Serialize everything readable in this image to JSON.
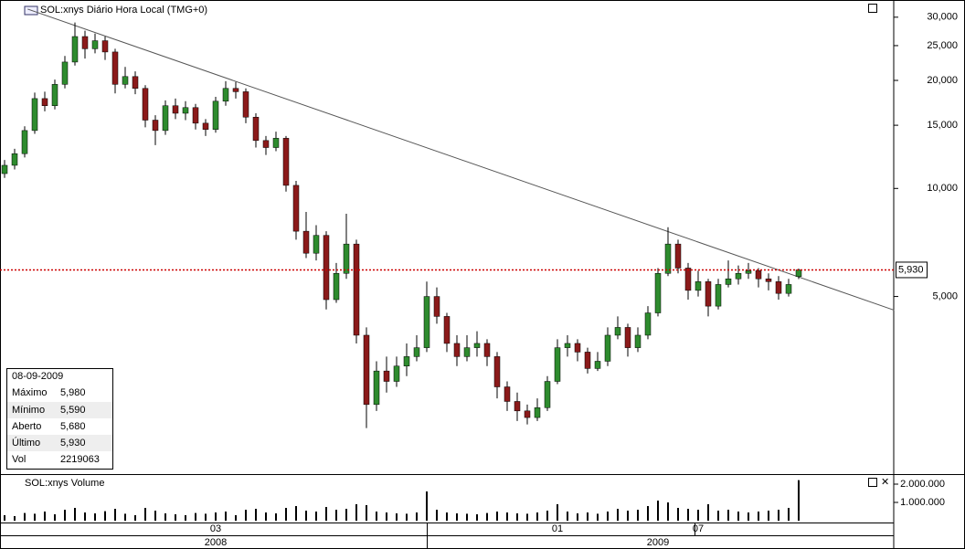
{
  "chart_data": {
    "type": "candlestick",
    "title": "SOL:xnys Diário Hora Local (TMG+0)",
    "volume_title": "SOL:xnys Volume",
    "log_scale": true,
    "up_color": "#2e8b2e",
    "down_color": "#8b1a1a",
    "ylim": [
      1.6,
      33.5
    ],
    "yticks": [
      {
        "value": 30,
        "label": "30,000"
      },
      {
        "value": 25,
        "label": "25,000"
      },
      {
        "value": 20,
        "label": "20,000"
      },
      {
        "value": 15,
        "label": "15,000"
      },
      {
        "value": 10,
        "label": "10,000"
      },
      {
        "value": 5,
        "label": "5,000"
      }
    ],
    "volume_ylim": [
      0,
      2500000
    ],
    "volume_yticks": [
      {
        "value": 2000000,
        "label": "2.000.000"
      },
      {
        "value": 1000000,
        "label": "1.000.000"
      }
    ],
    "categories": [
      null,
      null,
      null,
      null,
      null,
      null,
      null,
      null,
      null,
      null,
      null,
      null,
      null,
      null,
      null,
      null,
      null,
      null,
      null,
      null,
      null,
      "03",
      null,
      null,
      null,
      null,
      null,
      null,
      null,
      null,
      null,
      null,
      null,
      null,
      null,
      null,
      null,
      null,
      null,
      null,
      null,
      null,
      null,
      null,
      null,
      null,
      null,
      null,
      null,
      null,
      null,
      null,
      null,
      null,
      null,
      "01",
      null,
      null,
      null,
      null,
      null,
      null,
      null,
      null,
      null,
      null,
      null,
      null,
      null,
      "07",
      null,
      null,
      null,
      null,
      null,
      null,
      null,
      null,
      null,
      null
    ],
    "year_labels": [
      null,
      null,
      null,
      null,
      null,
      null,
      null,
      null,
      null,
      null,
      null,
      null,
      null,
      null,
      null,
      null,
      null,
      null,
      null,
      null,
      null,
      "2008",
      null,
      null,
      null,
      null,
      null,
      null,
      null,
      null,
      null,
      null,
      null,
      null,
      null,
      null,
      null,
      null,
      null,
      null,
      null,
      null,
      null,
      null,
      null,
      null,
      null,
      null,
      null,
      null,
      null,
      null,
      null,
      null,
      null,
      null,
      null,
      null,
      null,
      null,
      null,
      null,
      null,
      null,
      null,
      "2009",
      null,
      null,
      null,
      null,
      null,
      null,
      null,
      null,
      null,
      null,
      null,
      null,
      null,
      null
    ],
    "open": [
      11.0,
      11.6,
      12.5,
      14.5,
      17.8,
      17.0,
      19.5,
      22.5,
      26.5,
      24.5,
      25.8,
      24.0,
      19.5,
      20.5,
      19.0,
      15.5,
      14.5,
      17.0,
      16.2,
      16.8,
      15.2,
      14.6,
      17.5,
      19.0,
      18.6,
      15.8,
      13.6,
      13.0,
      13.8,
      10.2,
      7.6,
      6.6,
      7.4,
      4.9,
      5.8,
      7.0,
      3.9,
      2.5,
      3.1,
      2.9,
      3.2,
      3.4,
      3.6,
      5.0,
      4.4,
      3.7,
      3.4,
      3.6,
      3.7,
      3.4,
      2.8,
      2.55,
      2.4,
      2.3,
      2.45,
      2.9,
      3.6,
      3.7,
      3.5,
      3.15,
      3.3,
      3.9,
      4.1,
      3.6,
      3.9,
      4.5,
      5.8,
      7.0,
      6.0,
      5.2,
      5.5,
      4.7,
      5.4,
      5.6,
      5.8,
      5.9,
      5.6,
      5.5,
      5.1,
      5.68
    ],
    "high": [
      12.0,
      12.9,
      14.9,
      18.5,
      18.6,
      20.1,
      23.4,
      29.0,
      27.5,
      27.0,
      26.5,
      24.5,
      21.8,
      21.2,
      19.4,
      16.0,
      17.6,
      17.8,
      17.5,
      17.2,
      15.6,
      18.0,
      19.9,
      19.8,
      19.0,
      16.2,
      14.0,
      14.4,
      14.0,
      10.5,
      8.6,
      7.9,
      7.6,
      6.2,
      8.5,
      7.2,
      4.1,
      3.3,
      3.4,
      3.4,
      3.7,
      3.9,
      5.5,
      5.3,
      4.5,
      3.9,
      3.9,
      4.0,
      3.8,
      3.5,
      2.9,
      2.7,
      2.5,
      2.6,
      3.0,
      3.8,
      3.9,
      3.8,
      3.6,
      3.5,
      4.1,
      4.4,
      4.2,
      4.1,
      4.7,
      6.0,
      7.8,
      7.2,
      6.2,
      5.9,
      5.6,
      5.6,
      6.3,
      6.1,
      6.2,
      6.0,
      5.8,
      5.7,
      5.6,
      5.98
    ],
    "low": [
      10.7,
      11.3,
      12.2,
      14.2,
      16.4,
      16.6,
      19.0,
      22.0,
      23.0,
      23.8,
      22.8,
      18.4,
      19.0,
      18.3,
      14.8,
      13.2,
      14.1,
      15.6,
      15.5,
      14.6,
      14.0,
      14.3,
      17.0,
      17.8,
      15.2,
      13.0,
      12.4,
      12.7,
      9.8,
      7.2,
      6.4,
      6.3,
      4.6,
      4.8,
      5.6,
      3.7,
      2.15,
      2.4,
      2.7,
      2.8,
      3.0,
      3.3,
      3.5,
      4.2,
      3.5,
      3.2,
      3.3,
      3.4,
      3.2,
      2.6,
      2.4,
      2.25,
      2.2,
      2.25,
      2.4,
      2.85,
      3.4,
      3.3,
      3.05,
      3.1,
      3.2,
      3.8,
      3.4,
      3.5,
      3.8,
      4.4,
      5.7,
      5.8,
      4.9,
      5.0,
      4.4,
      4.6,
      5.3,
      5.4,
      5.6,
      5.3,
      5.2,
      4.9,
      5.0,
      5.59
    ],
    "close": [
      11.6,
      12.5,
      14.5,
      17.8,
      17.0,
      19.5,
      22.5,
      26.5,
      24.5,
      25.8,
      24.0,
      19.5,
      20.5,
      19.0,
      15.5,
      14.5,
      17.0,
      16.2,
      16.8,
      15.2,
      14.6,
      17.5,
      19.0,
      18.6,
      15.8,
      13.6,
      13.0,
      13.8,
      10.2,
      7.6,
      6.6,
      7.4,
      4.9,
      5.8,
      7.0,
      3.9,
      2.5,
      3.1,
      2.9,
      3.2,
      3.4,
      3.6,
      5.0,
      4.4,
      3.7,
      3.4,
      3.6,
      3.7,
      3.4,
      2.8,
      2.55,
      2.4,
      2.3,
      2.45,
      2.9,
      3.6,
      3.7,
      3.5,
      3.15,
      3.3,
      3.9,
      4.1,
      3.6,
      3.9,
      4.5,
      5.8,
      7.0,
      6.0,
      5.2,
      5.5,
      4.7,
      5.4,
      5.6,
      5.8,
      5.9,
      5.6,
      5.5,
      5.1,
      5.4,
      5.93
    ],
    "volume": [
      300000,
      250000,
      420000,
      380000,
      500000,
      350000,
      600000,
      700000,
      450000,
      400000,
      520000,
      650000,
      380000,
      300000,
      700000,
      550000,
      400000,
      350000,
      300000,
      420000,
      380000,
      450000,
      500000,
      300000,
      600000,
      650000,
      450000,
      400000,
      700000,
      800000,
      550000,
      500000,
      750000,
      600000,
      650000,
      900000,
      850000,
      500000,
      450000,
      400000,
      380000,
      450000,
      1600000,
      600000,
      450000,
      400000,
      380000,
      350000,
      420000,
      500000,
      450000,
      400000,
      380000,
      450000,
      550000,
      900000,
      500000,
      400000,
      450000,
      380000,
      500000,
      650000,
      550000,
      600000,
      800000,
      1100000,
      1000000,
      700000,
      650000,
      600000,
      900000,
      550000,
      600000,
      500000,
      450000,
      500000,
      550000,
      600000,
      700000,
      2219063
    ],
    "trendline": {
      "x": [
        2.3,
        88.5
      ],
      "values": [
        31.6,
        4.58
      ]
    },
    "last_price": {
      "value": 5.93,
      "label": "5,930"
    },
    "info_box": {
      "date": "08-09-2009",
      "rows": [
        {
          "label": "Máximo",
          "value": "5,980"
        },
        {
          "label": "Mínimo",
          "value": "5,590"
        },
        {
          "label": "Aberto",
          "value": "5,680"
        },
        {
          "label": "Último",
          "value": "5,930"
        },
        {
          "label": "Vol",
          "value": "2219063"
        }
      ]
    }
  }
}
